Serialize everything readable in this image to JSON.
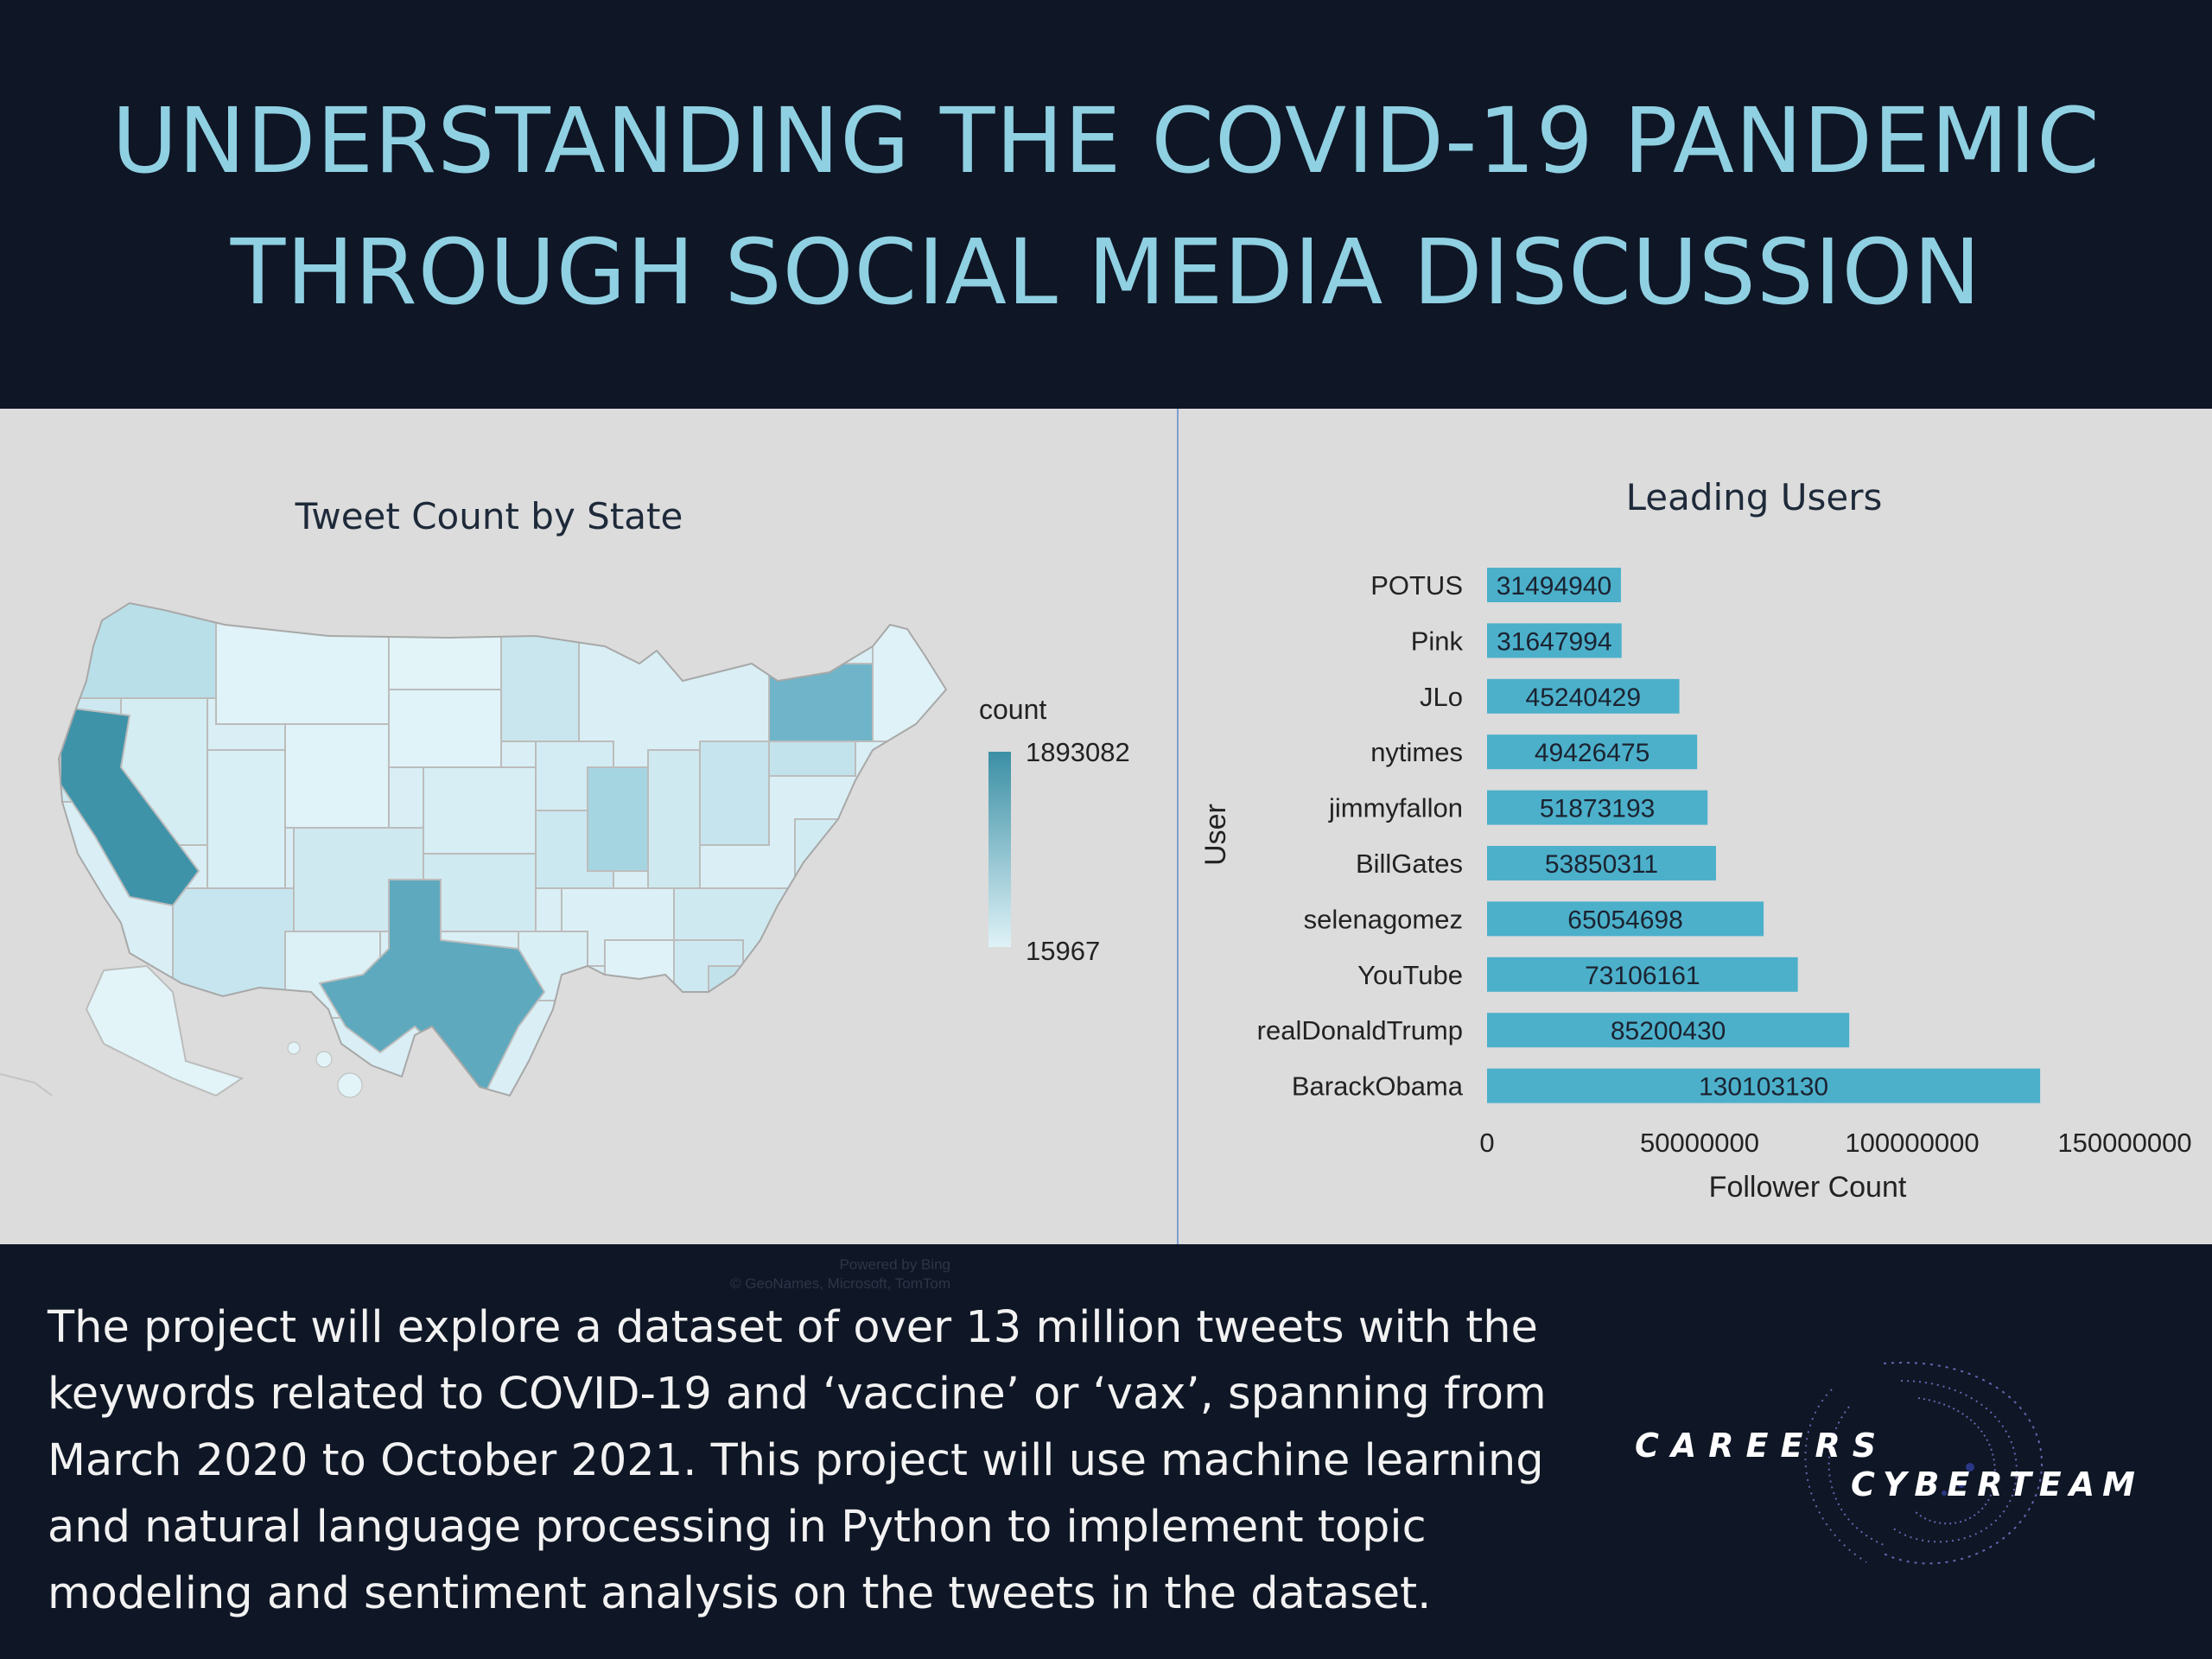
{
  "header": {
    "title_line1": "UNDERSTANDING THE COVID-19 PANDEMIC",
    "title_line2": "THROUGH SOCIAL MEDIA DISCUSSION"
  },
  "map": {
    "title": "Tweet Count by State",
    "legend_title": "count",
    "legend_max": "1893082",
    "legend_min": "15967",
    "credit_line1": "Powered by Bing",
    "credit_line2": "© GeoNames, Microsoft, TomTom",
    "colors": {
      "low": "#dff2f7",
      "high": "#3b8fa5",
      "border": "#b9b9b9"
    }
  },
  "chart_data": {
    "type": "bar",
    "orientation": "horizontal",
    "title": "Leading Users",
    "xlabel": "Follower Count",
    "ylabel": "User",
    "categories": [
      "POTUS",
      "Pink",
      "JLo",
      "nytimes",
      "jimmyfallon",
      "BillGates",
      "selenagomez",
      "YouTube",
      "realDonaldTrump",
      "BarackObama"
    ],
    "values": [
      31494940,
      31647994,
      45240429,
      49426475,
      51873193,
      53850311,
      65054698,
      73106161,
      85200430,
      130103130
    ],
    "data_labels": [
      "31494940",
      "31647994",
      "45240429",
      "49426475",
      "51873193",
      "53850311",
      "65054698",
      "73106161",
      "85200430",
      "130103130"
    ],
    "xlim": [
      0,
      150000000
    ],
    "xticks": [
      0,
      50000000,
      100000000,
      150000000
    ],
    "xtick_labels": [
      "0",
      "50000000",
      "100000000",
      "150000000"
    ],
    "bar_color": "#4cb0cb",
    "grid": false
  },
  "description": "The project will explore a dataset of over 13 million tweets with the keywords related to COVID-19 and ‘vaccine’ or ‘vax’, spanning from March 2020 to October 2021. This project will use machine learning and natural language processing in Python to implement topic modeling and sentiment analysis on the tweets in the dataset.",
  "logo": {
    "word1": "CAREERS",
    "word2": "CYBERTEAM"
  }
}
